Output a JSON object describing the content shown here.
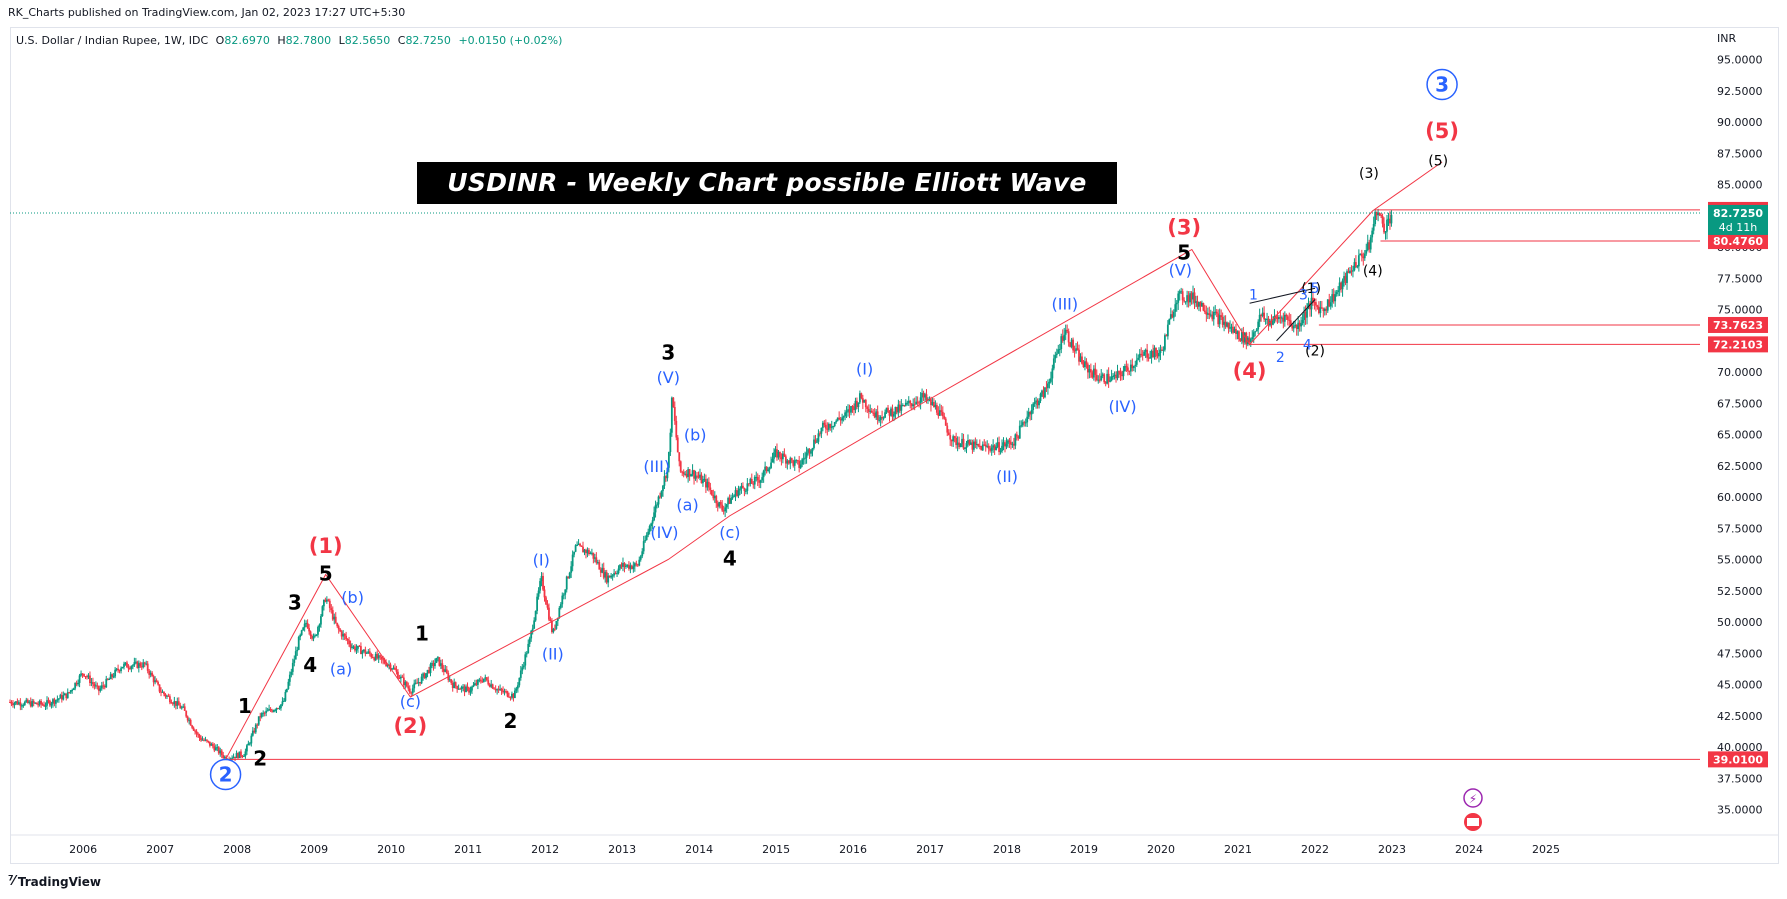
{
  "header": {
    "publisher": "RK_Charts published on TradingView.com, Jan 02, 2023 17:27 UTC+5:30"
  },
  "symbol": {
    "name": "U.S. Dollar / Indian Rupee, 1W, IDC",
    "open_label": "O",
    "open": "82.6970",
    "high_label": "H",
    "high": "82.7800",
    "low_label": "L",
    "low": "82.5650",
    "close_label": "C",
    "close": "82.7250",
    "change": "+0.0150 (+0.02%)"
  },
  "title": "USDINR - Weekly Chart possible Elliott Wave Counts",
  "footer": {
    "brand": "TradingView"
  },
  "colors": {
    "up": "#089981",
    "down": "#f23645",
    "wave_line": "#f23645",
    "blue_label": "#2962ff",
    "red_label": "#f23645",
    "black_label": "#000000",
    "price_tag_bg": "#f23645",
    "last_price_bg": "#089981"
  },
  "chart_data": {
    "type": "candlestick",
    "title": "USDINR - Weekly Chart possible Elliott Wave Counts",
    "currency": "INR",
    "ylim": [
      33.0,
      97.0
    ],
    "y_ticks": [
      35.0,
      37.5,
      40.0,
      42.5,
      45.0,
      47.5,
      50.0,
      52.5,
      55.0,
      57.5,
      60.0,
      62.5,
      65.0,
      67.5,
      70.0,
      72.5,
      75.0,
      77.5,
      80.0,
      82.5,
      85.0,
      87.5,
      90.0,
      92.5,
      95.0
    ],
    "y_tick_labels": [
      "35.0000",
      "37.5000",
      "40.0000",
      "42.5000",
      "45.0000",
      "47.5000",
      "50.0000",
      "52.5000",
      "55.0000",
      "57.5000",
      "60.0000",
      "62.5000",
      "65.0000",
      "67.5000",
      "70.0000",
      "72.5000",
      "75.0000",
      "77.5000",
      "80.0000",
      "82.5000",
      "85.0000",
      "87.5000",
      "90.0000",
      "92.5000",
      "95.0000"
    ],
    "x_tick_labels": [
      "2006",
      "2007",
      "2008",
      "2009",
      "2010",
      "2011",
      "2012",
      "2013",
      "2014",
      "2015",
      "2016",
      "2017",
      "2018",
      "2019",
      "2020",
      "2021",
      "2022",
      "2023",
      "2024",
      "2025"
    ],
    "x_ticks": [
      2006,
      2007,
      2008,
      2009,
      2010,
      2011,
      2012,
      2013,
      2014,
      2015,
      2016,
      2017,
      2018,
      2019,
      2020,
      2021,
      2022,
      2023,
      2024,
      2025
    ],
    "xlim": [
      2005.05,
      2027.0
    ],
    "price_path": [
      [
        2005.05,
        43.6
      ],
      [
        2005.5,
        43.4
      ],
      [
        2005.8,
        44.2
      ],
      [
        2006.0,
        46.0
      ],
      [
        2006.2,
        44.5
      ],
      [
        2006.5,
        46.5
      ],
      [
        2006.8,
        46.6
      ],
      [
        2007.0,
        44.5
      ],
      [
        2007.3,
        43.0
      ],
      [
        2007.5,
        40.8
      ],
      [
        2007.7,
        40.0
      ],
      [
        2007.85,
        39.1
      ],
      [
        2008.1,
        39.5
      ],
      [
        2008.3,
        42.5
      ],
      [
        2008.6,
        43.5
      ],
      [
        2008.8,
        48.5
      ],
      [
        2008.9,
        50.0
      ],
      [
        2009.0,
        48.5
      ],
      [
        2009.15,
        52.0
      ],
      [
        2009.3,
        49.5
      ],
      [
        2009.5,
        48.0
      ],
      [
        2009.7,
        47.5
      ],
      [
        2010.0,
        46.5
      ],
      [
        2010.25,
        44.5
      ],
      [
        2010.4,
        45.5
      ],
      [
        2010.6,
        47.0
      ],
      [
        2010.8,
        45.0
      ],
      [
        2011.0,
        44.5
      ],
      [
        2011.2,
        45.5
      ],
      [
        2011.4,
        44.5
      ],
      [
        2011.6,
        44.1
      ],
      [
        2011.8,
        48.5
      ],
      [
        2011.95,
        53.5
      ],
      [
        2012.1,
        49.0
      ],
      [
        2012.2,
        51.5
      ],
      [
        2012.4,
        56.0
      ],
      [
        2012.6,
        55.5
      ],
      [
        2012.8,
        53.5
      ],
      [
        2013.0,
        54.5
      ],
      [
        2013.2,
        54.5
      ],
      [
        2013.4,
        58.5
      ],
      [
        2013.6,
        62.5
      ],
      [
        2013.65,
        68.0
      ],
      [
        2013.75,
        62.0
      ],
      [
        2013.9,
        62.0
      ],
      [
        2014.1,
        61.0
      ],
      [
        2014.3,
        59.0
      ],
      [
        2014.5,
        60.5
      ],
      [
        2014.8,
        61.5
      ],
      [
        2015.0,
        63.5
      ],
      [
        2015.3,
        62.5
      ],
      [
        2015.6,
        65.5
      ],
      [
        2015.9,
        66.5
      ],
      [
        2016.1,
        68.0
      ],
      [
        2016.3,
        66.5
      ],
      [
        2016.6,
        67.0
      ],
      [
        2016.9,
        68.0
      ],
      [
        2017.1,
        67.0
      ],
      [
        2017.3,
        64.5
      ],
      [
        2017.6,
        64.0
      ],
      [
        2017.9,
        64.0
      ],
      [
        2018.1,
        64.5
      ],
      [
        2018.3,
        67.0
      ],
      [
        2018.5,
        68.5
      ],
      [
        2018.75,
        73.5
      ],
      [
        2018.85,
        72.0
      ],
      [
        2019.0,
        70.5
      ],
      [
        2019.2,
        69.5
      ],
      [
        2019.4,
        69.5
      ],
      [
        2019.6,
        70.5
      ],
      [
        2019.8,
        71.5
      ],
      [
        2020.0,
        71.5
      ],
      [
        2020.2,
        76.0
      ],
      [
        2020.4,
        76.0
      ],
      [
        2020.6,
        75.0
      ],
      [
        2020.8,
        74.0
      ],
      [
        2021.0,
        73.0
      ],
      [
        2021.15,
        72.5
      ],
      [
        2021.3,
        74.5
      ],
      [
        2021.4,
        74.0
      ],
      [
        2021.6,
        74.5
      ],
      [
        2021.75,
        73.5
      ],
      [
        2021.95,
        75.5
      ],
      [
        2022.1,
        75.0
      ],
      [
        2022.3,
        76.5
      ],
      [
        2022.5,
        78.5
      ],
      [
        2022.7,
        80.0
      ],
      [
        2022.8,
        83.0
      ],
      [
        2022.9,
        81.5
      ],
      [
        2023.0,
        82.7
      ]
    ],
    "wave_lines": [
      [
        [
          2007.85,
          39.0
        ],
        [
          2009.15,
          53.8
        ],
        [
          2010.25,
          44.0
        ],
        [
          2013.6,
          55.0
        ],
        [
          2014.4,
          58.5
        ],
        [
          2016.9,
          67.5
        ],
        [
          2020.4,
          79.8
        ],
        [
          2021.15,
          72.2
        ],
        [
          2022.75,
          82.9
        ],
        [
          2023.65,
          86.8
        ]
      ],
      [
        [
          2021.15,
          75.5
        ],
        [
          2022.0,
          76.7
        ]
      ],
      [
        [
          2021.5,
          72.5
        ],
        [
          2022.0,
          75.8
        ]
      ]
    ],
    "horizontal_levels": [
      {
        "price": 82.9652,
        "label": "82.9652",
        "x_start": 2022.78
      },
      {
        "price": 80.476,
        "label": "80.4760",
        "x_start": 2022.85
      },
      {
        "price": 73.7623,
        "label": "73.7623",
        "x_start": 2022.05
      },
      {
        "price": 72.2103,
        "label": "72.2103",
        "x_start": 2021.15
      },
      {
        "price": 39.01,
        "label": "39.0100",
        "x_start": 2007.85
      }
    ],
    "last_price": {
      "price": 82.725,
      "label": "82.7250",
      "countdown": "4d 11h"
    },
    "wave_labels": [
      {
        "text": "2",
        "x": 2007.85,
        "y": 37.8,
        "color": "blue",
        "circled": true
      },
      {
        "text": "3",
        "x": 2023.65,
        "y": 93.0,
        "color": "blue",
        "circled": true
      },
      {
        "text": "(1)",
        "x": 2009.15,
        "y": 56.0,
        "color": "red"
      },
      {
        "text": "(2)",
        "x": 2010.25,
        "y": 41.6,
        "color": "red"
      },
      {
        "text": "(3)",
        "x": 2020.3,
        "y": 81.5,
        "color": "red"
      },
      {
        "text": "(4)",
        "x": 2021.15,
        "y": 70.0,
        "color": "red"
      },
      {
        "text": "(5)",
        "x": 2023.65,
        "y": 89.2,
        "color": "red"
      },
      {
        "text": "1",
        "x": 2008.1,
        "y": 43.2,
        "color": "black"
      },
      {
        "text": "2",
        "x": 2008.3,
        "y": 39.0,
        "color": "black"
      },
      {
        "text": "3",
        "x": 2008.75,
        "y": 51.5,
        "color": "black"
      },
      {
        "text": "4",
        "x": 2008.95,
        "y": 46.5,
        "color": "black"
      },
      {
        "text": "5",
        "x": 2009.15,
        "y": 53.8,
        "color": "black"
      },
      {
        "text": "1",
        "x": 2010.4,
        "y": 49.0,
        "color": "black"
      },
      {
        "text": "2",
        "x": 2011.55,
        "y": 42.0,
        "color": "black"
      },
      {
        "text": "3",
        "x": 2013.6,
        "y": 71.5,
        "color": "black"
      },
      {
        "text": "4",
        "x": 2014.4,
        "y": 55.0,
        "color": "black"
      },
      {
        "text": "5",
        "x": 2020.3,
        "y": 79.5,
        "color": "black"
      },
      {
        "text": "(3)",
        "x": 2022.7,
        "y": 86.0,
        "color": "black_small"
      },
      {
        "text": "(4)",
        "x": 2022.75,
        "y": 78.2,
        "color": "black_small"
      },
      {
        "text": "(5)",
        "x": 2023.6,
        "y": 87.0,
        "color": "black_small"
      },
      {
        "text": "(2)",
        "x": 2022.0,
        "y": 71.8,
        "color": "black_small"
      },
      {
        "text": "(1)",
        "x": 2021.95,
        "y": 76.8,
        "color": "black_small"
      },
      {
        "text": "(a)",
        "x": 2009.35,
        "y": 46.3,
        "color": "blue"
      },
      {
        "text": "(b)",
        "x": 2009.5,
        "y": 52.0,
        "color": "blue"
      },
      {
        "text": "(c)",
        "x": 2010.25,
        "y": 43.7,
        "color": "blue"
      },
      {
        "text": "(I)",
        "x": 2011.95,
        "y": 55.0,
        "color": "blue"
      },
      {
        "text": "(II)",
        "x": 2012.1,
        "y": 47.5,
        "color": "blue"
      },
      {
        "text": "(III)",
        "x": 2013.45,
        "y": 62.5,
        "color": "blue"
      },
      {
        "text": "(IV)",
        "x": 2013.55,
        "y": 57.2,
        "color": "blue"
      },
      {
        "text": "(V)",
        "x": 2013.6,
        "y": 69.6,
        "color": "blue"
      },
      {
        "text": "(a)",
        "x": 2013.85,
        "y": 59.4,
        "color": "blue"
      },
      {
        "text": "(b)",
        "x": 2013.95,
        "y": 65.0,
        "color": "blue"
      },
      {
        "text": "(c)",
        "x": 2014.4,
        "y": 57.2,
        "color": "blue"
      },
      {
        "text": "(I)",
        "x": 2016.15,
        "y": 70.3,
        "color": "blue"
      },
      {
        "text": "(II)",
        "x": 2018.0,
        "y": 61.7,
        "color": "blue"
      },
      {
        "text": "(III)",
        "x": 2018.75,
        "y": 75.5,
        "color": "blue"
      },
      {
        "text": "(IV)",
        "x": 2019.5,
        "y": 67.3,
        "color": "blue"
      },
      {
        "text": "(V)",
        "x": 2020.25,
        "y": 78.2,
        "color": "blue"
      },
      {
        "text": "1",
        "x": 2021.2,
        "y": 76.3,
        "color": "blue_small"
      },
      {
        "text": "2",
        "x": 2021.55,
        "y": 71.3,
        "color": "blue_small"
      },
      {
        "text": "3",
        "x": 2021.85,
        "y": 76.3,
        "color": "blue_small"
      },
      {
        "text": "4",
        "x": 2021.9,
        "y": 72.3,
        "color": "blue_small"
      },
      {
        "text": "5",
        "x": 2022.0,
        "y": 76.8,
        "color": "blue_small"
      }
    ]
  }
}
